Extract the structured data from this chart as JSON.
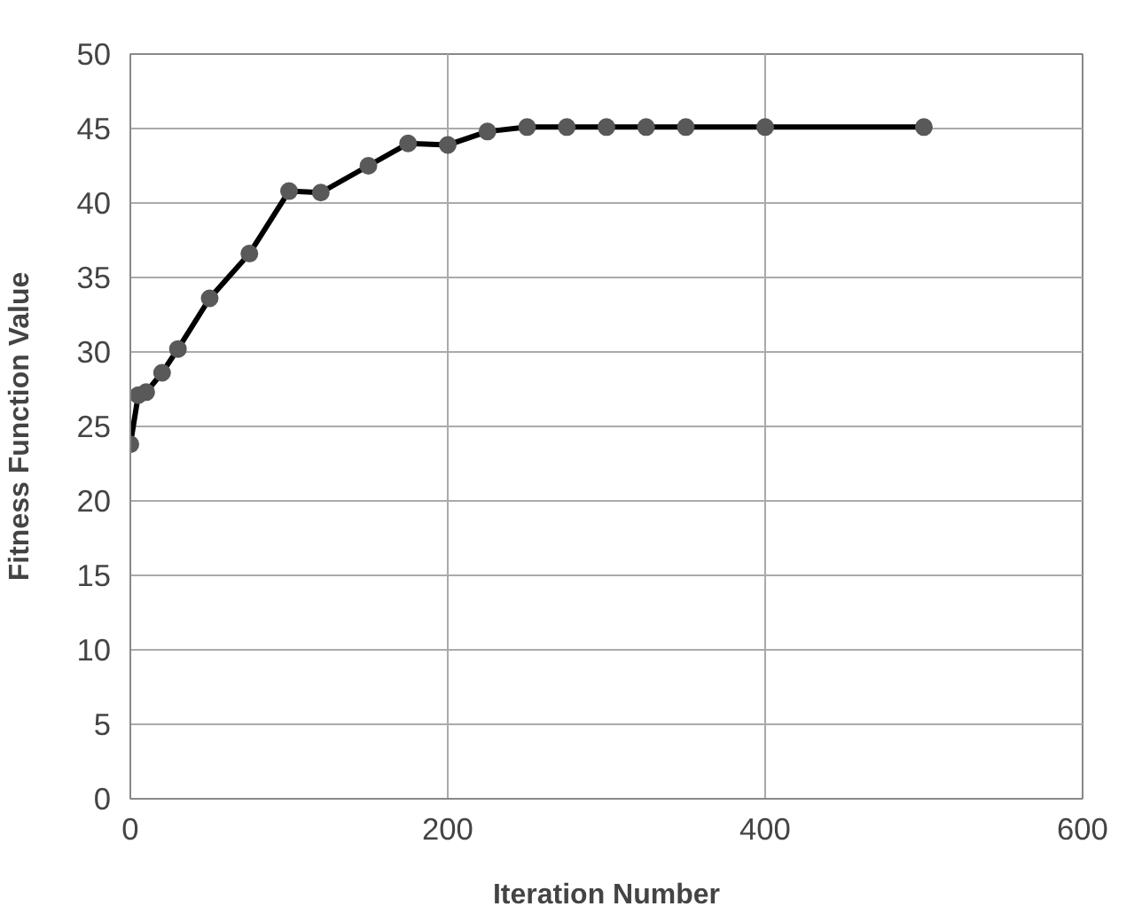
{
  "chart_data": {
    "type": "line",
    "xlabel": "Iteration Number",
    "ylabel": "Fitness Function Value",
    "x": [
      0,
      5,
      10,
      20,
      30,
      50,
      75,
      100,
      120,
      150,
      175,
      200,
      225,
      250,
      275,
      300,
      325,
      350,
      400,
      500
    ],
    "series": [
      {
        "color": "#000000",
        "values": [
          23.8,
          27.1,
          27.3,
          28.6,
          30.2,
          33.6,
          36.6,
          40.8,
          40.7,
          42.5,
          44.0,
          43.9,
          44.8,
          45.1,
          45.1,
          45.1,
          45.1,
          45.1,
          45.1,
          45.1
        ]
      }
    ],
    "xlim": [
      0,
      600
    ],
    "xticks": [
      0,
      200,
      400,
      600
    ],
    "ylim": [
      0,
      50
    ],
    "yticks": [
      0,
      5,
      10,
      15,
      20,
      25,
      30,
      35,
      40,
      45,
      50
    ],
    "grid": true,
    "marker": "circle",
    "line_style": "solid"
  }
}
